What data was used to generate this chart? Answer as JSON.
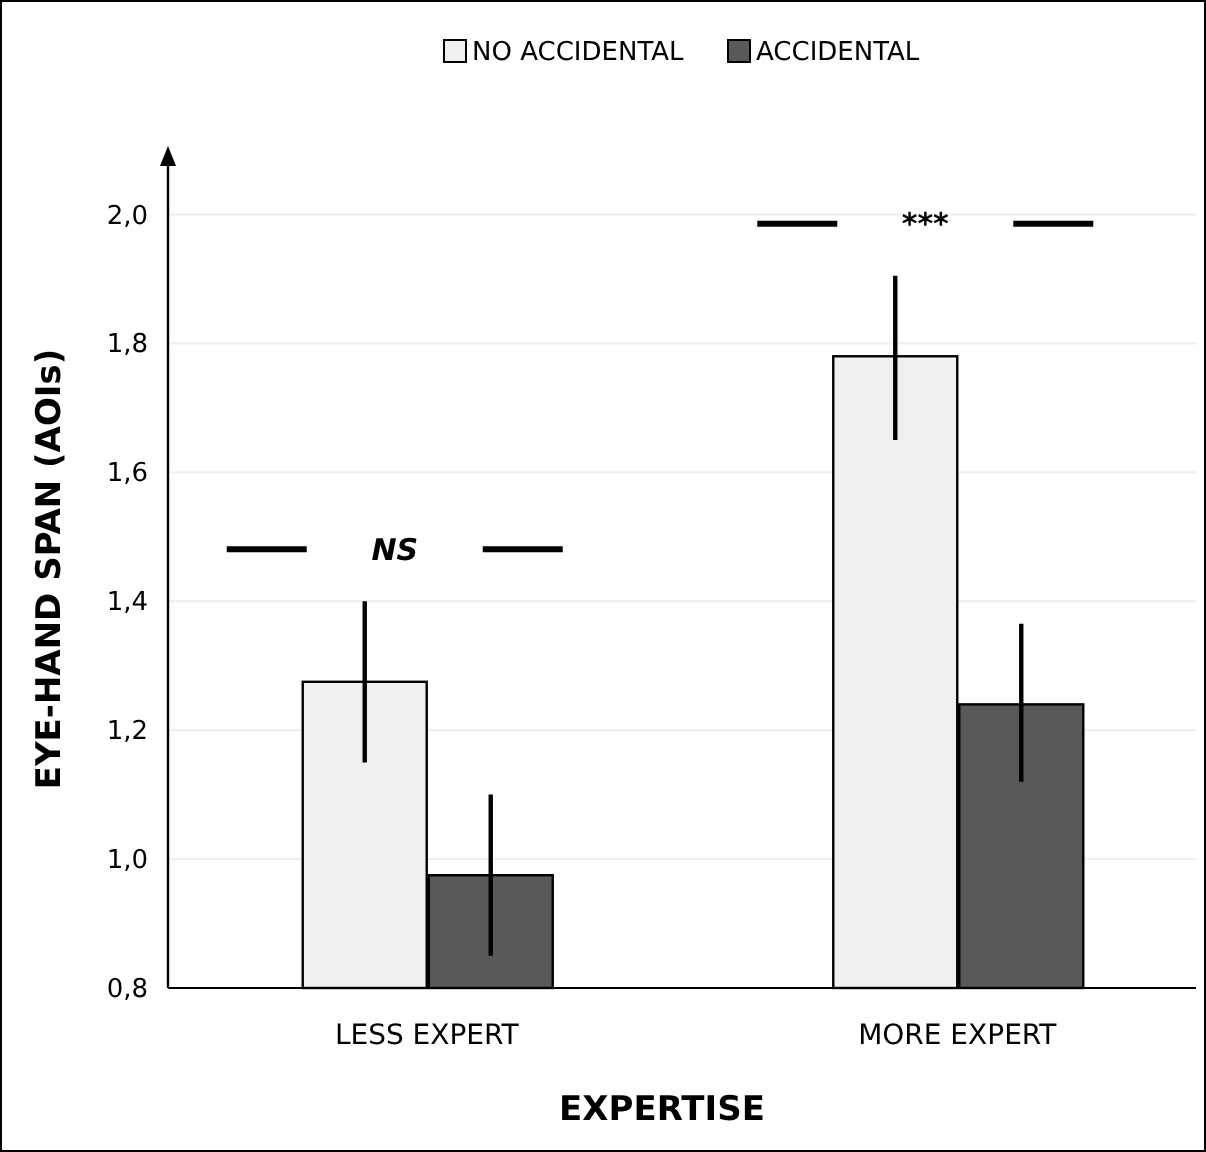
{
  "chart_data": {
    "type": "bar",
    "xlabel": "EXPERTISE",
    "ylabel": "EYE-HAND SPAN (AOIs)",
    "categories": [
      "LESS EXPERT",
      "MORE EXPERT"
    ],
    "series": [
      {
        "name": "NO ACCIDENTAL",
        "color": "#f0f0f0",
        "values": [
          1.275,
          1.78
        ],
        "errors": [
          [
            1.15,
            1.4
          ],
          [
            1.65,
            1.905
          ]
        ]
      },
      {
        "name": "ACCIDENTAL",
        "color": "#595959",
        "values": [
          0.975,
          1.24
        ],
        "errors": [
          [
            0.85,
            1.1
          ],
          [
            1.12,
            1.365
          ]
        ]
      }
    ],
    "ylim": [
      0.8,
      2.1
    ],
    "yticks": [
      {
        "value": 0.8,
        "label": "0,8"
      },
      {
        "value": 1.0,
        "label": "1,0"
      },
      {
        "value": 1.2,
        "label": "1,2"
      },
      {
        "value": 1.4,
        "label": "1,4"
      },
      {
        "value": 1.6,
        "label": "1,6"
      },
      {
        "value": 1.8,
        "label": "1,8"
      },
      {
        "value": 2.0,
        "label": "2,0"
      }
    ],
    "grid": "y",
    "legend": "top",
    "annotations": [
      "NS",
      "***"
    ]
  }
}
